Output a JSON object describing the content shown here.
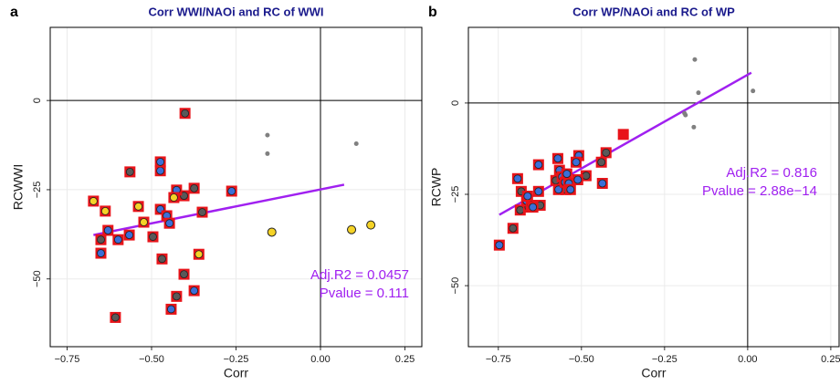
{
  "chart_data": [
    {
      "type": "scatter",
      "panel_label": "a",
      "title": "Corr WWI/NAOi and RC of WWI",
      "xlabel": "Corr",
      "ylabel": "RCWWI",
      "xlim": [
        -0.8,
        0.3
      ],
      "ylim": [
        -69,
        20.5
      ],
      "xticks": [
        {
          "value": -0.75,
          "label": "−0.75"
        },
        {
          "value": -0.5,
          "label": "−0.50"
        },
        {
          "value": -0.25,
          "label": "−0.25"
        },
        {
          "value": 0,
          "label": "0.00"
        },
        {
          "value": 0.25,
          "label": "0.25"
        }
      ],
      "yticks": [
        {
          "value": -50,
          "label": "−50"
        },
        {
          "value": -25,
          "label": "−25"
        },
        0
      ],
      "grid": true,
      "hline": 0,
      "vline": 0,
      "series": [
        {
          "marker": "square-circle",
          "edge": "#e8141a",
          "color": "#595959",
          "x": [
            -0.65,
            -0.564,
            -0.496,
            -0.469,
            -0.404,
            -0.374,
            -0.35,
            -0.401,
            -0.404,
            -0.426,
            -0.607
          ],
          "values": [
            -39,
            -20,
            -38.2,
            -44.4,
            -26.7,
            -24.6,
            -31.3,
            -3.6,
            -48.7,
            -54.9,
            -60.8
          ]
        },
        {
          "marker": "square-circle",
          "edge": "#e8141a",
          "color": "#3b6fd8",
          "x": [
            -0.629,
            -0.65,
            -0.599,
            -0.566,
            -0.474,
            -0.474,
            -0.474,
            -0.455,
            -0.447,
            -0.426,
            -0.374,
            -0.442,
            -0.263
          ],
          "values": [
            -36.4,
            -42.8,
            -39,
            -37.7,
            -19.7,
            -17.2,
            -30.5,
            -32.3,
            -34.4,
            -25.1,
            -53.3,
            -58.5,
            -25.4
          ]
        },
        {
          "marker": "square-circle",
          "edge": "#e8141a",
          "color": "#f5d327",
          "x": [
            -0.672,
            -0.637,
            -0.539,
            -0.523,
            -0.434,
            -0.36
          ],
          "values": [
            -28.2,
            -31,
            -29.7,
            -34.1,
            -27.2,
            -43.1
          ]
        },
        {
          "marker": "circle",
          "edge": "#222222",
          "color": "#f5d327",
          "x": [
            -0.144,
            0.092,
            0.149
          ],
          "values": [
            -36.9,
            -36.2,
            -34.9
          ]
        },
        {
          "marker": "dot",
          "color": "#808080",
          "x": [
            -0.157,
            -0.157,
            0.106
          ],
          "values": [
            -9.7,
            -14.9,
            -12.1
          ]
        }
      ],
      "fit": {
        "color": "#a020f0",
        "x": [
          -0.672,
          0.07
        ],
        "values": [
          -37.7,
          -23.6
        ]
      },
      "annotations": [
        "Adj.R2 = 0.0457",
        "Pvalue = 0.111"
      ]
    },
    {
      "type": "scatter",
      "panel_label": "b",
      "title": "Corr WP/NAOi and RC of WP",
      "xlabel": "Corr",
      "ylabel": "RCWP",
      "xlim": [
        -0.84,
        0.275
      ],
      "ylim": [
        -66.7,
        20.7
      ],
      "xticks": [
        {
          "value": -0.75,
          "label": "−0.75"
        },
        {
          "value": -0.5,
          "label": "−0.50"
        },
        {
          "value": -0.25,
          "label": "−0.25"
        },
        {
          "value": 0,
          "label": "0.00"
        },
        {
          "value": 0.25,
          "label": "0.25"
        }
      ],
      "yticks": [
        {
          "value": -50,
          "label": "−50"
        },
        {
          "value": -25,
          "label": "−25"
        },
        0
      ],
      "grid": true,
      "hline": 0,
      "vline": 0,
      "series": [
        {
          "marker": "square-circle",
          "edge": "#e8141a",
          "color": "#595959",
          "x": [
            -0.706,
            -0.684,
            -0.681,
            -0.659,
            -0.624,
            -0.577,
            -0.547,
            -0.486,
            -0.44,
            -0.426
          ],
          "values": [
            -34.3,
            -29.3,
            -24.2,
            -28.5,
            -28,
            -21.2,
            -23.7,
            -19.9,
            -16.2,
            -13.6
          ]
        },
        {
          "marker": "square-circle",
          "edge": "#e8141a",
          "color": "#3b6fd8",
          "x": [
            -0.747,
            -0.692,
            -0.665,
            -0.662,
            -0.651,
            -0.646,
            -0.629,
            -0.629,
            -0.571,
            -0.569,
            -0.566,
            -0.558,
            -0.549,
            -0.544,
            -0.538,
            -0.533,
            -0.511,
            -0.508,
            -0.516,
            -0.437
          ],
          "values": [
            -38.9,
            -20.7,
            -26.8,
            -25.5,
            -28,
            -28.5,
            -24.2,
            -16.9,
            -15.2,
            -23.7,
            -18.4,
            -20.2,
            -21.7,
            -19.4,
            -22,
            -23.7,
            -21,
            -14.4,
            -16.2,
            -22
          ]
        },
        {
          "marker": "square",
          "edge": "#e8141a",
          "color": "#e8141a",
          "x": [
            -0.374
          ],
          "values": [
            -8.6
          ]
        },
        {
          "marker": "dot",
          "color": "#808080",
          "x": [
            -0.159,
            -0.148,
            -0.19,
            -0.187,
            -0.162,
            0.016
          ],
          "values": [
            11.9,
            2.8,
            -2.8,
            -3.3,
            -6.6,
            3.3
          ]
        }
      ],
      "fit": {
        "color": "#a020f0",
        "x": [
          -0.747,
          0.011
        ],
        "values": [
          -30.6,
          8.3
        ]
      },
      "annotations": [
        "Adj.R2 = 0.816",
        "Pvalue = 2.88e−14"
      ]
    }
  ]
}
